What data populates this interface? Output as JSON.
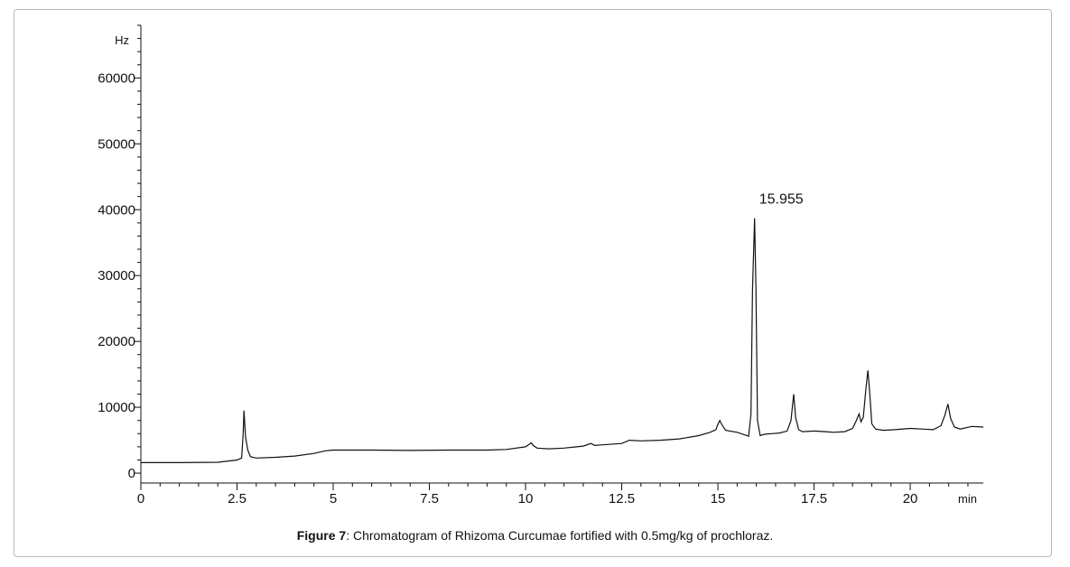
{
  "chart_data": {
    "type": "line",
    "title": "",
    "ylabel": "Hz",
    "xlabel": "min",
    "xlim": [
      0,
      21.9
    ],
    "ylim": [
      -1500,
      68000
    ],
    "x_ticks": [
      0,
      2.5,
      5,
      7.5,
      10,
      12.5,
      15,
      17.5,
      20
    ],
    "x_tick_labels": [
      "0",
      "2.5",
      "5",
      "7.5",
      "10",
      "12.5",
      "15",
      "17.5",
      "20"
    ],
    "y_ticks": [
      0,
      10000,
      20000,
      30000,
      40000,
      50000,
      60000
    ],
    "y_tick_labels": [
      "0",
      "10000",
      "20000",
      "30000",
      "40000",
      "50000",
      "60000"
    ],
    "annotations": [
      {
        "text": "15.955",
        "x": 15.955,
        "y": 39000
      }
    ],
    "series": [
      {
        "x": [
          0,
          1.0,
          2.0,
          2.5,
          2.62,
          2.66,
          2.68,
          2.72,
          2.78,
          2.85,
          3.0,
          3.5,
          4.0,
          4.5,
          4.8,
          5.0,
          6.0,
          7.0,
          8.0,
          9.0,
          9.5,
          10.0,
          10.1,
          10.15,
          10.2,
          10.3,
          10.6,
          11.0,
          11.5,
          11.7,
          11.8,
          12.0,
          12.5,
          12.7,
          13.0,
          13.5,
          14.0,
          14.5,
          14.8,
          14.95,
          15.0,
          15.05,
          15.1,
          15.2,
          15.5,
          15.7,
          15.8,
          15.86,
          15.9,
          15.955,
          15.99,
          16.03,
          16.1,
          16.2,
          16.4,
          16.6,
          16.8,
          16.9,
          16.97,
          17.02,
          17.1,
          17.2,
          17.5,
          17.8,
          18.0,
          18.3,
          18.5,
          18.6,
          18.67,
          18.72,
          18.78,
          18.85,
          18.9,
          18.95,
          19.0,
          19.1,
          19.3,
          19.6,
          20.0,
          20.3,
          20.6,
          20.8,
          20.9,
          20.98,
          21.05,
          21.15,
          21.3,
          21.6,
          21.9
        ],
        "y": [
          1600,
          1600,
          1650,
          2000,
          2300,
          6000,
          9500,
          5500,
          3500,
          2500,
          2300,
          2400,
          2600,
          3000,
          3400,
          3500,
          3500,
          3450,
          3500,
          3500,
          3600,
          4000,
          4400,
          4600,
          4200,
          3800,
          3700,
          3800,
          4100,
          4500,
          4200,
          4300,
          4500,
          5000,
          4900,
          5000,
          5200,
          5700,
          6200,
          6600,
          7400,
          8000,
          7400,
          6500,
          6200,
          5800,
          5600,
          9000,
          28000,
          38700,
          28000,
          8000,
          5700,
          5900,
          6000,
          6100,
          6400,
          8000,
          12000,
          8500,
          6600,
          6300,
          6400,
          6300,
          6200,
          6300,
          6800,
          8000,
          9000,
          7800,
          8500,
          13000,
          15600,
          12000,
          7500,
          6700,
          6500,
          6600,
          6800,
          6700,
          6600,
          7200,
          8800,
          10500,
          8300,
          7000,
          6700,
          7100,
          7000
        ]
      }
    ]
  },
  "caption": {
    "label": "Figure 7",
    "text": ": Chromatogram of Rhizoma Curcumae fortified with 0.5mg/kg of prochloraz."
  },
  "colors": {
    "line": "#111111",
    "axis": "#111111",
    "frame": "#b9b9b9"
  }
}
